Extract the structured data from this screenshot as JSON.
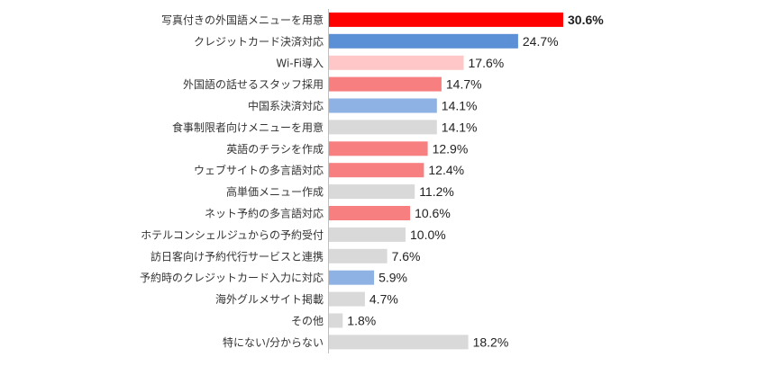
{
  "chart_data": {
    "type": "bar",
    "orientation": "horizontal",
    "title": "",
    "xlabel": "",
    "ylabel": "",
    "grid": false,
    "xlim": [
      0,
      30.6
    ],
    "value_format": "%",
    "categories": [
      "写真付きの外国語メニューを用意",
      "クレジットカード決済対応",
      "Wi-Fi導入",
      "外国語の話せるスタッフ採用",
      "中国系決済対応",
      "食事制限者向けメニューを用意",
      "英語のチラシを作成",
      "ウェブサイトの多言語対応",
      "高単価メニュー作成",
      "ネット予約の多言語対応",
      "ホテルコンシェルジュからの予約受付",
      "訪日客向け予約代行サービスと連携",
      "予約時のクレジットカード入力に対応",
      "海外グルメサイト掲載",
      "その他",
      "特にない/分からない"
    ],
    "values": [
      30.6,
      24.7,
      17.6,
      14.7,
      14.1,
      14.1,
      12.9,
      12.4,
      11.2,
      10.6,
      10.0,
      7.6,
      5.9,
      4.7,
      1.8,
      18.2
    ],
    "value_labels": [
      "30.6%",
      "24.7%",
      "17.6%",
      "14.7%",
      "14.1%",
      "14.1%",
      "12.9%",
      "12.4%",
      "11.2%",
      "10.6%",
      "10.0%",
      "7.6%",
      "5.9%",
      "4.7%",
      "1.8%",
      "18.2%"
    ],
    "bar_colors": [
      "#ff0000",
      "#5b8fd6",
      "#ffc7c7",
      "#f77f7f",
      "#8eb2e3",
      "#d9d9d9",
      "#f77f7f",
      "#f77f7f",
      "#d9d9d9",
      "#f77f7f",
      "#d9d9d9",
      "#d9d9d9",
      "#8eb2e3",
      "#d9d9d9",
      "#d9d9d9",
      "#d9d9d9"
    ],
    "highlight_index": 0,
    "axis_color": "#bfbfbf"
  }
}
